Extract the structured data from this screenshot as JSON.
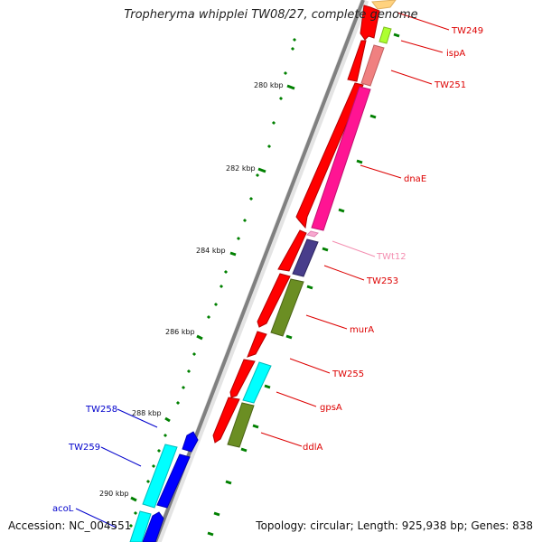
{
  "title": "Tropheryma whipplei TW08/27, complete genome",
  "accession_text": "Accession: NC_004551",
  "topology_text": "Topology: circular; Length: 925,938 bp; Genes: 838",
  "ticks": [
    {
      "label": "280 kbp"
    },
    {
      "label": "282 kbp"
    },
    {
      "label": "284 kbp"
    },
    {
      "label": "286 kbp"
    },
    {
      "label": "288 kbp"
    },
    {
      "label": "290 kbp"
    }
  ],
  "gene_labels": [
    {
      "text": "TW249",
      "color": "#dd0000"
    },
    {
      "text": "ispA",
      "color": "#dd0000"
    },
    {
      "text": "TW251",
      "color": "#dd0000"
    },
    {
      "text": "dnaE",
      "color": "#dd0000"
    },
    {
      "text": "TWt12",
      "color": "#f48fb1"
    },
    {
      "text": "TW253",
      "color": "#dd0000"
    },
    {
      "text": "murA",
      "color": "#dd0000"
    },
    {
      "text": "TW255",
      "color": "#dd0000"
    },
    {
      "text": "gpsA",
      "color": "#dd0000"
    },
    {
      "text": "ddlA",
      "color": "#dd0000"
    },
    {
      "text": "TW258",
      "color": "#0000cc"
    },
    {
      "text": "TW259",
      "color": "#0000cc"
    },
    {
      "text": "acoL",
      "color": "#0000cc"
    }
  ],
  "colors": {
    "forward_cds": "#ff0000",
    "reverse_cds": "#0000ff",
    "forward_feature_pink": "#ff1493",
    "forward_feature_olive": "#6b8e23",
    "forward_feature_navy": "#483d8b",
    "forward_feature_light": "#f08080",
    "forward_feature_lime": "#adff2f",
    "reverse_feature_cyan": "#00ffff",
    "backbone": "#808080",
    "gc_marks": "#008000"
  }
}
